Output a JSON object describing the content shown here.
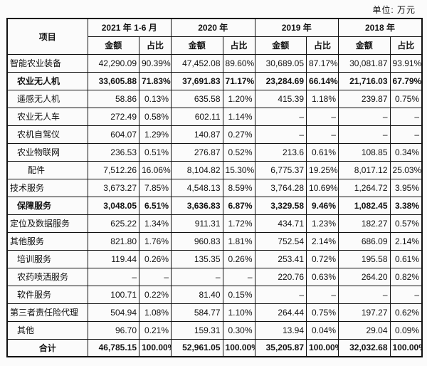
{
  "unit_label": "单位: 万元",
  "table": {
    "item_header": "项目",
    "amount_header": "金额",
    "ratio_header": "占比",
    "periods": [
      "2021 年 1-6 月",
      "2020 年",
      "2019 年",
      "2018 年"
    ],
    "rows": [
      {
        "label": "智能农业装备",
        "indent": 0,
        "bold": false,
        "center": false,
        "values": [
          "42,290.09",
          "90.39%",
          "47,452.08",
          "89.60%",
          "30,689.05",
          "87.17%",
          "30,081.87",
          "93.91%"
        ]
      },
      {
        "label": "农业无人机",
        "indent": 1,
        "bold": true,
        "center": false,
        "values": [
          "33,605.88",
          "71.83%",
          "37,691.83",
          "71.17%",
          "23,284.69",
          "66.14%",
          "21,716.03",
          "67.79%"
        ]
      },
      {
        "label": "遥感无人机",
        "indent": 1,
        "bold": false,
        "center": false,
        "values": [
          "58.86",
          "0.13%",
          "635.58",
          "1.20%",
          "415.39",
          "1.18%",
          "239.87",
          "0.75%"
        ]
      },
      {
        "label": "农业无人车",
        "indent": 1,
        "bold": false,
        "center": false,
        "values": [
          "272.49",
          "0.58%",
          "602.11",
          "1.14%",
          "–",
          "–",
          "–",
          "–"
        ]
      },
      {
        "label": "农机自驾仪",
        "indent": 1,
        "bold": false,
        "center": false,
        "values": [
          "604.07",
          "1.29%",
          "140.87",
          "0.27%",
          "–",
          "–",
          "–",
          "–"
        ]
      },
      {
        "label": "农业物联网",
        "indent": 1,
        "bold": false,
        "center": false,
        "values": [
          "236.53",
          "0.51%",
          "276.87",
          "0.52%",
          "213.6",
          "0.61%",
          "108.85",
          "0.34%"
        ]
      },
      {
        "label": "配件",
        "indent": 2,
        "bold": false,
        "center": false,
        "values": [
          "7,512.26",
          "16.06%",
          "8,104.82",
          "15.30%",
          "6,775.37",
          "19.25%",
          "8,017.12",
          "25.03%"
        ]
      },
      {
        "label": "技术服务",
        "indent": 0,
        "bold": false,
        "center": false,
        "values": [
          "3,673.27",
          "7.85%",
          "4,548.13",
          "8.59%",
          "3,764.28",
          "10.69%",
          "1,264.72",
          "3.95%"
        ]
      },
      {
        "label": "保障服务",
        "indent": 1,
        "bold": true,
        "center": false,
        "values": [
          "3,048.05",
          "6.51%",
          "3,636.83",
          "6.87%",
          "3,329.58",
          "9.46%",
          "1,082.45",
          "3.38%"
        ]
      },
      {
        "label": "定位及数据服务",
        "indent": 0,
        "bold": false,
        "center": false,
        "values": [
          "625.22",
          "1.34%",
          "911.31",
          "1.72%",
          "434.71",
          "1.23%",
          "182.27",
          "0.57%"
        ]
      },
      {
        "label": "其他服务",
        "indent": 0,
        "bold": false,
        "center": false,
        "values": [
          "821.80",
          "1.76%",
          "960.83",
          "1.81%",
          "752.54",
          "2.14%",
          "686.09",
          "2.14%"
        ]
      },
      {
        "label": "培训服务",
        "indent": 1,
        "bold": false,
        "center": false,
        "values": [
          "119.44",
          "0.26%",
          "135.35",
          "0.26%",
          "253.41",
          "0.72%",
          "195.58",
          "0.61%"
        ]
      },
      {
        "label": "农药喷洒服务",
        "indent": 1,
        "bold": false,
        "center": false,
        "values": [
          "–",
          "–",
          "–",
          "–",
          "220.76",
          "0.63%",
          "264.20",
          "0.82%"
        ]
      },
      {
        "label": "软件服务",
        "indent": 1,
        "bold": false,
        "center": false,
        "values": [
          "100.71",
          "0.22%",
          "81.40",
          "0.15%",
          "–",
          "–",
          "–",
          "–"
        ]
      },
      {
        "label": "第三者责任险代理",
        "indent": 0,
        "bold": false,
        "center": false,
        "values": [
          "504.94",
          "1.08%",
          "584.77",
          "1.10%",
          "264.44",
          "0.75%",
          "197.27",
          "0.62%"
        ]
      },
      {
        "label": "其他",
        "indent": 1,
        "bold": false,
        "center": false,
        "values": [
          "96.70",
          "0.21%",
          "159.31",
          "0.30%",
          "13.94",
          "0.04%",
          "29.04",
          "0.09%"
        ]
      },
      {
        "label": "合计",
        "indent": 0,
        "bold": true,
        "center": true,
        "values": [
          "46,785.15",
          "100.00%",
          "52,961.05",
          "100.00%",
          "35,205.87",
          "100.00%",
          "32,032.68",
          "100.00%"
        ]
      }
    ]
  }
}
